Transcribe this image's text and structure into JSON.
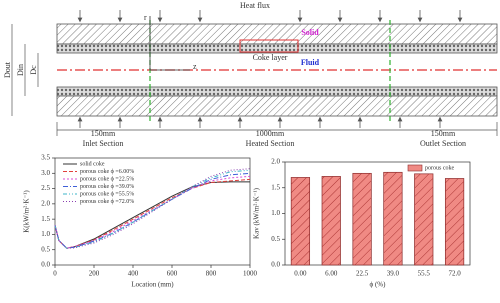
{
  "diagram": {
    "heat_flux": "Heat flux",
    "solid": "Solid",
    "coke_layer": "Coke layer",
    "fluid": "Fluid",
    "r_axis": "r",
    "z_axis": "z",
    "d_out": "Dout",
    "d_in": "Din",
    "d_c": "Dc",
    "inlet_length": "150mm",
    "heated_length": "1000mm",
    "outlet_length": "150mm",
    "inlet_section": "Inlet Section",
    "heated_section": "Heated Section",
    "outlet_section": "Outlet Section"
  },
  "chart_data": [
    {
      "type": "line",
      "x_label": "Location (mm)",
      "y_label": "K(kW/m²·K⁻¹)",
      "x": [
        0,
        20,
        60,
        100,
        200,
        300,
        400,
        500,
        600,
        700,
        800,
        900,
        1000
      ],
      "series": [
        {
          "name": "solid coke",
          "color": "#333333",
          "dash": "none",
          "values": [
            1.3,
            0.8,
            0.55,
            0.6,
            0.85,
            1.2,
            1.55,
            1.9,
            2.25,
            2.55,
            2.7,
            2.72,
            2.72
          ]
        },
        {
          "name": "porous coke ϕ =6.00%",
          "color": "#e0413c",
          "dash": "4 2",
          "values": [
            1.3,
            0.8,
            0.55,
            0.6,
            0.82,
            1.15,
            1.5,
            1.85,
            2.2,
            2.5,
            2.7,
            2.75,
            2.8
          ]
        },
        {
          "name": "porous coke ϕ =22.5%",
          "color": "#d84fd8",
          "dash": "2 2",
          "values": [
            1.3,
            0.8,
            0.55,
            0.6,
            0.8,
            1.1,
            1.45,
            1.8,
            2.15,
            2.5,
            2.75,
            2.85,
            2.9
          ]
        },
        {
          "name": "porous coke ϕ =39.0%",
          "color": "#3f5fd8",
          "dash": "5 2 1 2",
          "values": [
            1.3,
            0.8,
            0.55,
            0.58,
            0.78,
            1.05,
            1.4,
            1.78,
            2.15,
            2.5,
            2.8,
            2.95,
            3.0
          ]
        },
        {
          "name": "porous coke ϕ =55.5%",
          "color": "#3fb6c8",
          "dash": "4 2 1 2 1 2",
          "values": [
            1.3,
            0.8,
            0.55,
            0.57,
            0.75,
            1.05,
            1.4,
            1.78,
            2.15,
            2.55,
            2.85,
            3.05,
            3.1
          ]
        },
        {
          "name": "porous coke ϕ =72.0%",
          "color": "#8a3fb0",
          "dash": "1 2",
          "values": [
            1.3,
            0.8,
            0.55,
            0.56,
            0.72,
            1.0,
            1.35,
            1.75,
            2.15,
            2.55,
            2.9,
            3.1,
            3.15
          ]
        }
      ],
      "xlim": [
        0,
        1000
      ],
      "xticks": [
        0,
        200,
        400,
        600,
        800,
        1000
      ],
      "ylim": [
        0,
        3.5
      ],
      "yticks": [
        {
          "value": 0,
          "label": "0.0"
        },
        {
          "value": 0.5,
          "label": "0.5"
        },
        {
          "value": 1,
          "label": "1.0"
        },
        {
          "value": 1.5,
          "label": "1.5"
        },
        {
          "value": 2,
          "label": "2.0"
        },
        {
          "value": 2.5,
          "label": "2.5"
        },
        {
          "value": 3,
          "label": "3.0"
        },
        {
          "value": 3.5,
          "label": "3.5"
        }
      ]
    },
    {
      "type": "bar",
      "x_label": "ϕ (%)",
      "y_label": "Kav (kW/m²·K⁻¹)",
      "categories": [
        "0.00",
        "6.00",
        "22.5",
        "39.0",
        "55.5",
        "72.0"
      ],
      "series": [
        {
          "name": "porous coke",
          "color": "#f08a84",
          "values": [
            1.7,
            1.72,
            1.78,
            1.8,
            1.77,
            1.68
          ]
        }
      ],
      "ylim": [
        0,
        2.0
      ],
      "yticks": [
        {
          "value": 0,
          "label": "0.0"
        },
        {
          "value": 0.5,
          "label": "0.5"
        },
        {
          "value": 1,
          "label": "1.0"
        },
        {
          "value": 1.5,
          "label": "1.5"
        },
        {
          "value": 2,
          "label": "2.0"
        }
      ]
    }
  ]
}
